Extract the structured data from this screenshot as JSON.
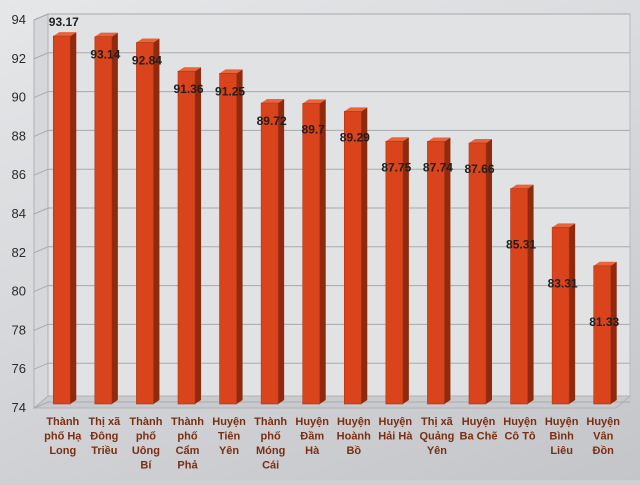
{
  "chart_data": {
    "type": "bar",
    "categories": [
      [
        "Thành",
        "phố Hạ",
        "Long"
      ],
      [
        "Thị xã",
        "Đông",
        "Triều"
      ],
      [
        "Thành",
        "phố",
        "Uông",
        "Bí"
      ],
      [
        "Thành",
        "phố",
        "Cẩm",
        "Phả"
      ],
      [
        "Huyện",
        "Tiên",
        "Yên"
      ],
      [
        "Thành",
        "phố",
        "Móng",
        "Cái"
      ],
      [
        "Huyện",
        "Đầm",
        "Hà"
      ],
      [
        "Huyện",
        "Hoành",
        "Bồ"
      ],
      [
        "Huyện",
        "Hải Hà"
      ],
      [
        "Thị xã",
        "Quảng",
        "Yên"
      ],
      [
        "Huyện",
        "Ba Chẽ"
      ],
      [
        "Huyện",
        "Cô Tô"
      ],
      [
        "Huyện",
        "Bình",
        "Liêu"
      ],
      [
        "Huyện",
        "Vân",
        "Đồn"
      ]
    ],
    "values": [
      93.17,
      93.14,
      92.84,
      91.36,
      91.25,
      89.72,
      89.7,
      89.29,
      87.75,
      87.74,
      87.66,
      85.31,
      83.31,
      81.33
    ],
    "value_labels": [
      "93.17",
      "93.14",
      "92.84",
      "91.36",
      "91.25",
      "89.72",
      "89.7",
      "89.29",
      "87.75",
      "87.74",
      "87.66",
      "85.31",
      "83.31",
      "81.33"
    ],
    "y_ticks": [
      74,
      76,
      78,
      80,
      82,
      84,
      86,
      88,
      90,
      92,
      94
    ],
    "ylim": [
      74,
      94
    ],
    "grid": true,
    "bar_color": "#d9441c",
    "bar_top_color": "#e8653c",
    "bar_side_color": "#8f2a0e"
  }
}
